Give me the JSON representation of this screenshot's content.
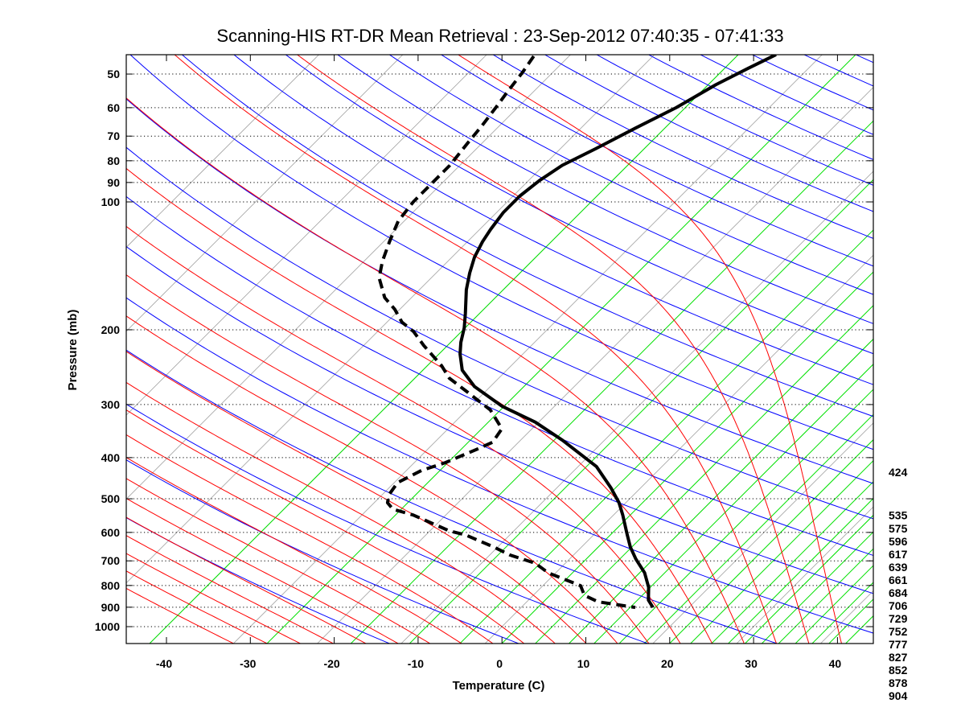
{
  "chart_data": {
    "type": "line",
    "subtype": "skew-T log-p diagram",
    "title": "Scanning-HIS RT-DR Mean Retrieval : 23-Sep-2012 07:40:35 - 07:41:33",
    "xlabel": "Temperature (C)",
    "ylabel": "Pressure (mb)",
    "xlim": [
      -45,
      45
    ],
    "ylim": [
      1100,
      45
    ],
    "yscale": "log",
    "grid": "dotted horizontal at pressure ticks",
    "x_ticks": [
      -40,
      -30,
      -20,
      -10,
      0,
      10,
      20,
      30,
      40
    ],
    "x_tick_labels": [
      "-40",
      "-30",
      "-20",
      "-10",
      "0",
      "10",
      "20",
      "30",
      "40"
    ],
    "y_ticks": [
      50,
      60,
      70,
      80,
      90,
      100,
      200,
      300,
      400,
      500,
      600,
      700,
      800,
      900,
      1000
    ],
    "y_tick_labels": [
      "50",
      "60",
      "70",
      "80",
      "90",
      "100",
      "200",
      "300",
      "400",
      "500",
      "600",
      "700",
      "800",
      "900",
      "1000"
    ],
    "right_pressure_labels": [
      "424",
      "535",
      "575",
      "596",
      "617",
      "639",
      "661",
      "684",
      "706",
      "729",
      "752",
      "777",
      "827",
      "852",
      "878",
      "904"
    ],
    "background": {
      "isotherms_C": [
        -90,
        -80,
        -70,
        -60,
        -50,
        -40,
        -30,
        -20,
        -10,
        0,
        10,
        20,
        30,
        40
      ],
      "dry_adiabats_K": [
        255,
        270,
        285,
        300,
        315,
        330,
        345,
        360,
        375,
        390,
        405,
        420,
        435,
        450,
        465,
        480,
        495,
        510,
        525,
        540,
        555,
        570,
        585,
        600
      ],
      "moist_adiabats_start_C_at_1000mb": [
        -36,
        -32,
        -28,
        -24,
        -20,
        -16,
        -12,
        -8,
        -4,
        0,
        4,
        8,
        12,
        16,
        20,
        24,
        28,
        32,
        36,
        40
      ],
      "green_lines_C_at_1000mb": [
        -40,
        -26,
        -16,
        -9,
        -3,
        2,
        6,
        10,
        13,
        16,
        19,
        22,
        24.5,
        27,
        29,
        31,
        33,
        35,
        37,
        39,
        41,
        43
      ],
      "colors": {
        "isotherm": "#a0a0a0",
        "dry_adiabat": "#0000ff",
        "moist_adiabat": "#ff0000",
        "green": "#00e000"
      }
    },
    "series": [
      {
        "name": "Temperature",
        "style": "solid",
        "color": "#000000",
        "points": [
          [
            45,
            -35.5
          ],
          [
            48.5,
            -37.2
          ],
          [
            53,
            -39.1
          ],
          [
            60,
            -41.1
          ],
          [
            67,
            -43.5
          ],
          [
            75,
            -45.8
          ],
          [
            82,
            -47.8
          ],
          [
            89,
            -48.7
          ],
          [
            97,
            -49.2
          ],
          [
            106,
            -49.2
          ],
          [
            116,
            -48.7
          ],
          [
            124,
            -48.2
          ],
          [
            135,
            -47.3
          ],
          [
            147,
            -46.0
          ],
          [
            161,
            -44.4
          ],
          [
            183,
            -41.7
          ],
          [
            198,
            -40.1
          ],
          [
            214,
            -38.8
          ],
          [
            228,
            -37.5
          ],
          [
            249,
            -35.3
          ],
          [
            272,
            -31.9
          ],
          [
            303,
            -26.2
          ],
          [
            330,
            -20.4
          ],
          [
            364,
            -15.0
          ],
          [
            420,
            -7.8
          ],
          [
            472,
            -3.5
          ],
          [
            511,
            -0.8
          ],
          [
            546,
            1.1
          ],
          [
            608,
            4.0
          ],
          [
            649,
            5.8
          ],
          [
            693,
            7.9
          ],
          [
            747,
            10.6
          ],
          [
            808,
            12.8
          ],
          [
            866,
            14.3
          ],
          [
            901,
            15.7
          ]
        ]
      },
      {
        "name": "Dewpoint",
        "style": "dashed",
        "color": "#000000",
        "points": [
          [
            45.4,
            -64.2
          ],
          [
            49.6,
            -63.6
          ],
          [
            55,
            -63.1
          ],
          [
            60,
            -62.6
          ],
          [
            66,
            -62.1
          ],
          [
            73,
            -61.7
          ],
          [
            82,
            -61.2
          ],
          [
            89,
            -61.2
          ],
          [
            100,
            -61.2
          ],
          [
            111,
            -60.7
          ],
          [
            124,
            -59.3
          ],
          [
            138,
            -57.8
          ],
          [
            151,
            -56.2
          ],
          [
            168,
            -53.2
          ],
          [
            179,
            -50.6
          ],
          [
            192,
            -48.2
          ],
          [
            202,
            -45.7
          ],
          [
            218,
            -42.8
          ],
          [
            243,
            -38.3
          ],
          [
            260,
            -35.9
          ],
          [
            278,
            -32.5
          ],
          [
            309,
            -27.2
          ],
          [
            342,
            -23.6
          ],
          [
            368,
            -23.1
          ],
          [
            382,
            -24.1
          ],
          [
            411,
            -26.3
          ],
          [
            429,
            -28.2
          ],
          [
            458,
            -29.6
          ],
          [
            489,
            -29.2
          ],
          [
            511,
            -28.4
          ],
          [
            529,
            -27.0
          ],
          [
            546,
            -23.9
          ],
          [
            595,
            -17.7
          ],
          [
            608,
            -15.3
          ],
          [
            649,
            -10.5
          ],
          [
            678,
            -7.6
          ],
          [
            709,
            -3.6
          ],
          [
            747,
            -0.9
          ],
          [
            801,
            4.5
          ],
          [
            844,
            6.1
          ],
          [
            874,
            8.5
          ],
          [
            901,
            13.6
          ]
        ]
      }
    ]
  }
}
